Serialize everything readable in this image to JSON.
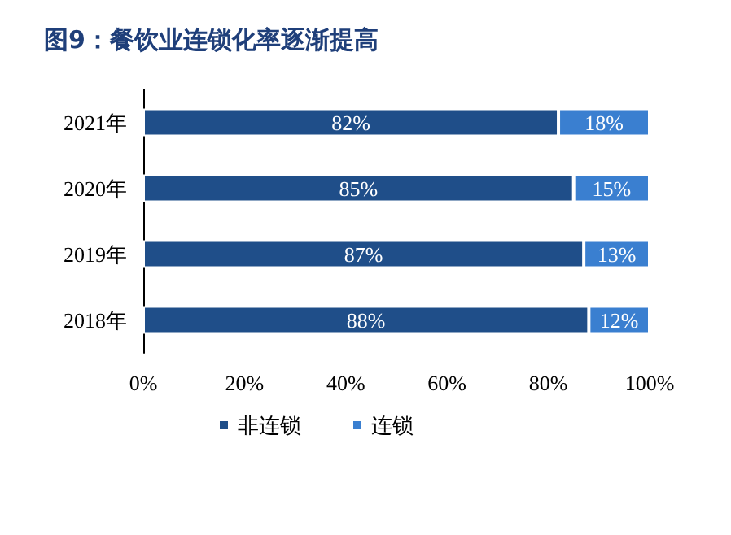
{
  "chart_data": {
    "type": "bar",
    "title": "图9：餐饮业连锁化率逐渐提高",
    "orientation": "horizontal",
    "stacked": true,
    "categories": [
      "2021年",
      "2020年",
      "2019年",
      "2018年"
    ],
    "series": [
      {
        "name": "非连锁",
        "color": "#1f4e89",
        "values": [
          82,
          85,
          87,
          88
        ],
        "value_labels": [
          "82%",
          "85%",
          "87%",
          "88%"
        ]
      },
      {
        "name": "连锁",
        "color": "#3a7fd0",
        "values": [
          18,
          15,
          13,
          12
        ],
        "value_labels": [
          "18%",
          "15%",
          "13%",
          "12%"
        ]
      }
    ],
    "xlim": [
      0,
      100
    ],
    "xticks": [
      {
        "value": 0,
        "label": "0%"
      },
      {
        "value": 20,
        "label": "20%"
      },
      {
        "value": 40,
        "label": "40%"
      },
      {
        "value": 60,
        "label": "60%"
      },
      {
        "value": 80,
        "label": "80%"
      },
      {
        "value": 100,
        "label": "100%"
      }
    ],
    "grid": false,
    "legend": "bottom left"
  }
}
